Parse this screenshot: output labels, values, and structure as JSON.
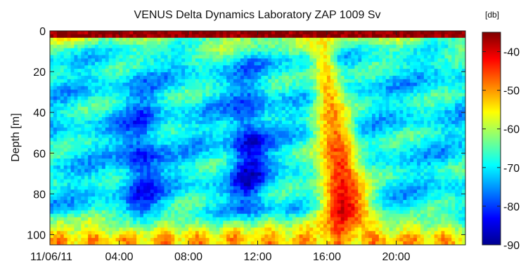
{
  "chart_data": {
    "type": "heatmap",
    "title": "VENUS Delta Dynamics Laboratory ZAP 1009 Sv",
    "xlabel": "",
    "ylabel": "Depth [m]",
    "x_axis": {
      "tick_labels": [
        "11/06/11",
        "04:00",
        "08:00",
        "12:00",
        "16:00",
        "20:00"
      ],
      "tick_hours": [
        0,
        4,
        8,
        12,
        16,
        20
      ],
      "range_hours": [
        0,
        24
      ]
    },
    "y_axis": {
      "ticks": [
        0,
        20,
        40,
        60,
        80,
        100
      ],
      "range": [
        0,
        105
      ],
      "inverted": true
    },
    "colorbar": {
      "unit_label": "[db]",
      "ticks": [
        -40,
        -50,
        -60,
        -70,
        -80,
        -90
      ],
      "range": [
        -90,
        -35
      ],
      "colormap": "jet",
      "placement": "right"
    },
    "features": {
      "surface_band_db": -35,
      "background_db": -70,
      "bottom_band_db": -52,
      "plume": {
        "center_hour": 17,
        "peak_db": -36
      },
      "low_backscatter_zones": [
        {
          "center_hour": 5.3,
          "depth_range": [
            35,
            95
          ],
          "db": -82
        },
        {
          "center_hour": 11.5,
          "depth_range": [
            30,
            90
          ],
          "db": -84
        }
      ]
    }
  }
}
